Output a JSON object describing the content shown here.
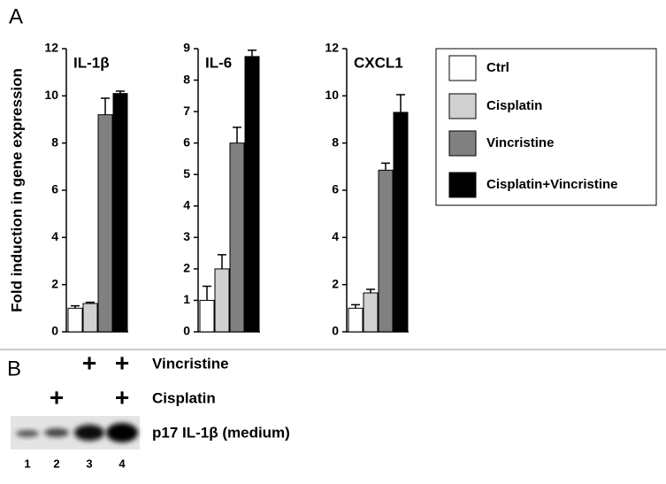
{
  "panel_a": "A",
  "ylabel": "Fold induction in gene expression",
  "legend": [
    {
      "name": "Ctrl",
      "color": "#ffffff"
    },
    {
      "name": "Cisplatin",
      "color": "#d0d0d0"
    },
    {
      "name": "Vincristine",
      "color": "#808080"
    },
    {
      "name": "Cisplatin+Vincristine",
      "color": "#000000"
    }
  ],
  "chart_data": [
    {
      "type": "bar",
      "title": "IL-1β",
      "values": [
        1.0,
        1.2,
        9.2,
        10.1
      ],
      "errors": [
        0.1,
        0.05,
        0.7,
        0.1
      ],
      "ylim": [
        0,
        12
      ],
      "yticks": [
        0,
        2,
        4,
        6,
        8,
        10,
        12
      ]
    },
    {
      "type": "bar",
      "title": "IL-6",
      "values": [
        1.0,
        2.0,
        6.0,
        8.75
      ],
      "errors": [
        0.45,
        0.45,
        0.5,
        0.2
      ],
      "ylim": [
        0,
        9
      ],
      "yticks": [
        0,
        1,
        2,
        3,
        4,
        5,
        6,
        7,
        8,
        9
      ]
    },
    {
      "type": "bar",
      "title": "CXCL1",
      "values": [
        1.0,
        1.65,
        6.85,
        9.3
      ],
      "errors": [
        0.15,
        0.15,
        0.3,
        0.75
      ],
      "ylim": [
        0,
        12
      ],
      "yticks": [
        0,
        2,
        4,
        6,
        8,
        10,
        12
      ]
    }
  ],
  "panel_b": "B",
  "treatments": [
    {
      "name": "Vincristine",
      "marks": [
        null,
        null,
        "+",
        "+"
      ]
    },
    {
      "name": "Cisplatin",
      "marks": [
        null,
        "+",
        null,
        "+"
      ]
    }
  ],
  "band_label": "p17 IL-1β (medium)",
  "lanes": [
    1,
    2,
    3,
    4
  ]
}
